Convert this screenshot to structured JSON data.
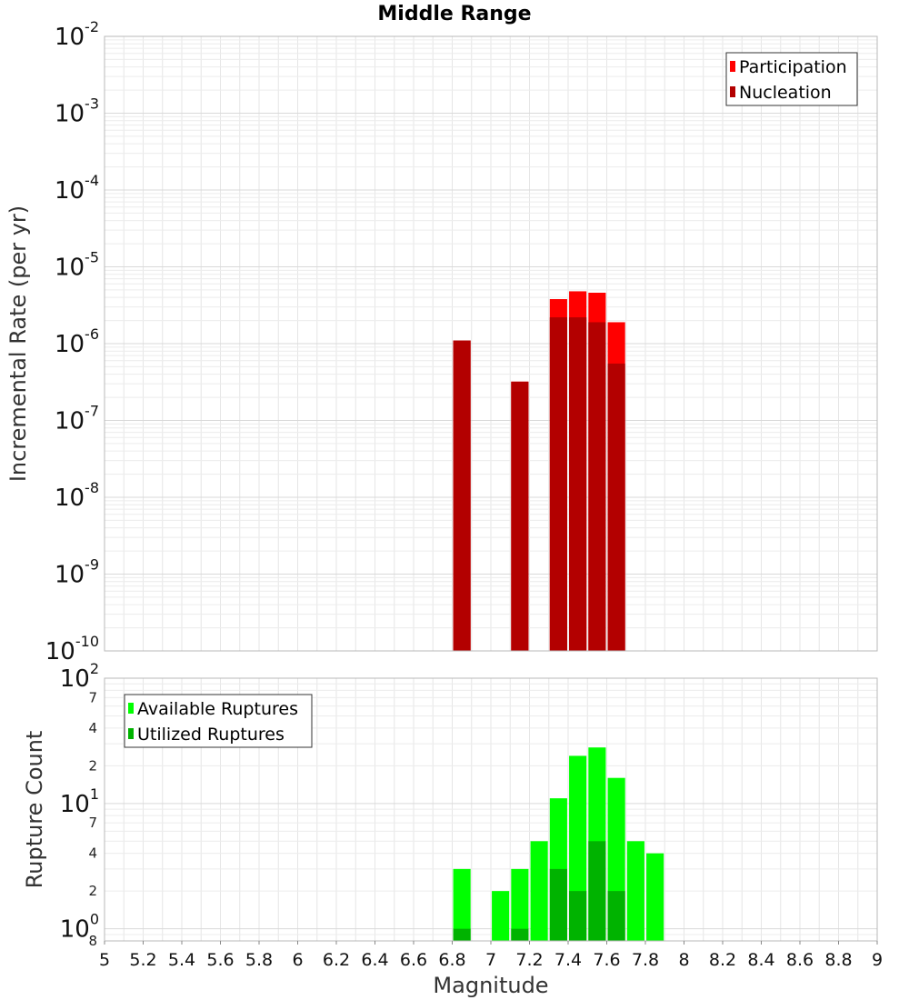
{
  "chart_data": [
    {
      "type": "bar",
      "title": "Middle Range",
      "xlabel": "",
      "ylabel": "Incremental Rate (per yr)",
      "yscale": "log",
      "ylim": [
        1e-10,
        0.01
      ],
      "xlim": [
        5,
        9
      ],
      "y_ticks": [
        {
          "base": "10",
          "exp": "-2",
          "value": 0.01
        },
        {
          "base": "10",
          "exp": "-3",
          "value": 0.001
        },
        {
          "base": "10",
          "exp": "-4",
          "value": 0.0001
        },
        {
          "base": "10",
          "exp": "-5",
          "value": 1e-05
        },
        {
          "base": "10",
          "exp": "-6",
          "value": 1e-06
        },
        {
          "base": "10",
          "exp": "-7",
          "value": 1e-07
        },
        {
          "base": "10",
          "exp": "-8",
          "value": 1e-08
        },
        {
          "base": "10",
          "exp": "-9",
          "value": 1e-09
        },
        {
          "base": "10",
          "exp": "-10",
          "value": 1e-10
        }
      ],
      "legend_position": "top-right",
      "series": [
        {
          "name": "Participation",
          "color": "#ff0000",
          "points": [
            {
              "x": 6.85,
              "y": 1.1e-06
            },
            {
              "x": 7.15,
              "y": 3.2e-07
            },
            {
              "x": 7.35,
              "y": 3.8e-06
            },
            {
              "x": 7.45,
              "y": 4.8e-06
            },
            {
              "x": 7.55,
              "y": 4.6e-06
            },
            {
              "x": 7.65,
              "y": 1.9e-06
            }
          ]
        },
        {
          "name": "Nucleation",
          "color": "#b30000",
          "points": [
            {
              "x": 6.85,
              "y": 1.1e-06
            },
            {
              "x": 7.15,
              "y": 3.2e-07
            },
            {
              "x": 7.35,
              "y": 2.2e-06
            },
            {
              "x": 7.45,
              "y": 2.2e-06
            },
            {
              "x": 7.55,
              "y": 1.9e-06
            },
            {
              "x": 7.65,
              "y": 5.5e-07
            }
          ]
        }
      ]
    },
    {
      "type": "bar",
      "title": "",
      "xlabel": "Magnitude",
      "ylabel": "Rupture Count",
      "yscale": "log",
      "ylim": [
        0.8,
        100
      ],
      "xlim": [
        5,
        9
      ],
      "x_ticks": [
        "5",
        "5.2",
        "5.4",
        "5.6",
        "5.8",
        "6",
        "6.2",
        "6.4",
        "6.6",
        "6.8",
        "7",
        "7.2",
        "7.4",
        "7.6",
        "7.8",
        "8",
        "8.2",
        "8.4",
        "8.6",
        "8.8",
        "9"
      ],
      "y_ticks": [
        {
          "base": "10",
          "exp": "2",
          "value": 100
        },
        {
          "base": "10",
          "exp": "1",
          "value": 10
        },
        {
          "base": "10",
          "exp": "0",
          "value": 1
        }
      ],
      "y_minor_ticks": [
        {
          "label": "7",
          "value": 70
        },
        {
          "label": "4",
          "value": 40
        },
        {
          "label": "2",
          "value": 20
        },
        {
          "label": "7",
          "value": 7
        },
        {
          "label": "4",
          "value": 4
        },
        {
          "label": "2",
          "value": 2
        },
        {
          "label": "8",
          "value": 0.8
        }
      ],
      "legend_position": "top-left",
      "series": [
        {
          "name": "Available Ruptures",
          "color": "#00ff00",
          "points": [
            {
              "x": 6.85,
              "y": 3
            },
            {
              "x": 7.05,
              "y": 2
            },
            {
              "x": 7.15,
              "y": 3
            },
            {
              "x": 7.25,
              "y": 5
            },
            {
              "x": 7.35,
              "y": 11
            },
            {
              "x": 7.45,
              "y": 24
            },
            {
              "x": 7.55,
              "y": 28
            },
            {
              "x": 7.65,
              "y": 16
            },
            {
              "x": 7.75,
              "y": 5
            },
            {
              "x": 7.85,
              "y": 4
            }
          ]
        },
        {
          "name": "Utilized Ruptures",
          "color": "#00b300",
          "points": [
            {
              "x": 6.85,
              "y": 1
            },
            {
              "x": 7.15,
              "y": 1
            },
            {
              "x": 7.35,
              "y": 3
            },
            {
              "x": 7.45,
              "y": 2
            },
            {
              "x": 7.55,
              "y": 5
            },
            {
              "x": 7.65,
              "y": 2
            }
          ]
        }
      ]
    }
  ]
}
